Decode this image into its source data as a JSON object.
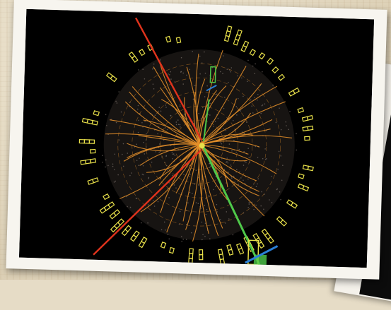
{
  "scene": {
    "description_tag": "event-display-photo",
    "colors": {
      "background": "#000000",
      "tracks": "#e8902a",
      "calorimeter": "#e8e04a",
      "red_track": "#e0331c",
      "green_track": "#4fc94a",
      "blue_marker": "#2a7fd6",
      "photo_border": "#f7f5ef"
    }
  }
}
